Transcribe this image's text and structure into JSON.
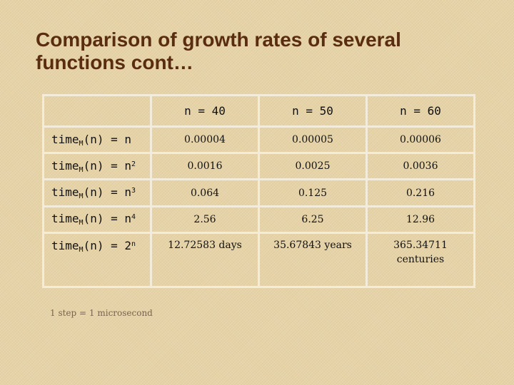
{
  "title": "Comparison of growth rates of several functions cont…",
  "table": {
    "columns": [
      "n = 40",
      "n = 50",
      "n = 60"
    ],
    "rows": [
      {
        "label": "time",
        "sub": "M",
        "rest": "(n) = n",
        "exp": "",
        "values": [
          "0.00004",
          "0.00005",
          "0.00006"
        ]
      },
      {
        "label": "time",
        "sub": "M",
        "rest": "(n) = n",
        "exp": "2",
        "values": [
          "0.0016",
          "0.0025",
          "0.0036"
        ]
      },
      {
        "label": "time",
        "sub": "M",
        "rest": "(n) = n",
        "exp": "3",
        "values": [
          "0.064",
          "0.125",
          "0.216"
        ]
      },
      {
        "label": "time",
        "sub": "M",
        "rest": "(n) = n",
        "exp": "4",
        "values": [
          "2.56",
          "6.25",
          "12.96"
        ]
      },
      {
        "label": "time",
        "sub": "M",
        "rest": "(n) = 2",
        "exp": "n",
        "values": [
          "12.72583 days",
          "35.67843 years",
          "365.34711 centuries"
        ]
      }
    ]
  },
  "footnote": "1 step = 1 microsecond"
}
